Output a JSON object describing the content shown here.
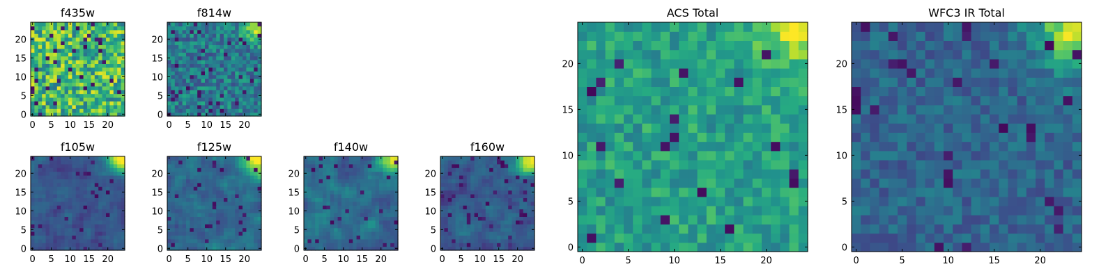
{
  "chart_data": [
    {
      "type": "heatmap",
      "title": "f435w",
      "x_ticks": [
        0,
        5,
        10,
        15,
        20
      ],
      "y_ticks": [
        0,
        5,
        10,
        15,
        20
      ],
      "xlim": [
        -0.5,
        24.5
      ],
      "ylim": [
        -0.5,
        24.5
      ],
      "grid_size": 25,
      "colormap": "viridis",
      "texture": "speckled",
      "seed": 11,
      "noise": 0.18,
      "base": 0.68,
      "corner_boost": 0.0,
      "low_spots": 0.06
    },
    {
      "type": "heatmap",
      "title": "f814w",
      "x_ticks": [
        0,
        5,
        10,
        15,
        20
      ],
      "y_ticks": [
        0,
        5,
        10,
        15,
        20
      ],
      "xlim": [
        -0.5,
        24.5
      ],
      "ylim": [
        -0.5,
        24.5
      ],
      "grid_size": 25,
      "colormap": "viridis",
      "texture": "speckled",
      "seed": 23,
      "noise": 0.12,
      "base": 0.42,
      "corner_boost": 0.55,
      "low_spots": 0.05
    },
    {
      "type": "heatmap",
      "title": "f105w",
      "x_ticks": [
        0,
        5,
        10,
        15,
        20
      ],
      "y_ticks": [
        0,
        5,
        10,
        15,
        20
      ],
      "xlim": [
        -0.5,
        24.5
      ],
      "ylim": [
        -0.5,
        24.5
      ],
      "grid_size": 25,
      "colormap": "viridis",
      "texture": "smooth",
      "seed": 37,
      "noise": 0.1,
      "base": 0.27,
      "corner_boost": 0.75,
      "low_spots": 0.04
    },
    {
      "type": "heatmap",
      "title": "f125w",
      "x_ticks": [
        0,
        5,
        10,
        15,
        20
      ],
      "y_ticks": [
        0,
        5,
        10,
        15,
        20
      ],
      "xlim": [
        -0.5,
        24.5
      ],
      "ylim": [
        -0.5,
        24.5
      ],
      "grid_size": 25,
      "colormap": "viridis",
      "texture": "smooth",
      "seed": 41,
      "noise": 0.12,
      "base": 0.35,
      "corner_boost": 0.7,
      "low_spots": 0.05
    },
    {
      "type": "heatmap",
      "title": "f140w",
      "x_ticks": [
        0,
        5,
        10,
        15,
        20
      ],
      "y_ticks": [
        0,
        5,
        10,
        15,
        20
      ],
      "xlim": [
        -0.5,
        24.5
      ],
      "ylim": [
        -0.5,
        24.5
      ],
      "grid_size": 25,
      "colormap": "viridis",
      "texture": "smooth",
      "seed": 53,
      "noise": 0.12,
      "base": 0.36,
      "corner_boost": 0.7,
      "low_spots": 0.05
    },
    {
      "type": "heatmap",
      "title": "f160w",
      "x_ticks": [
        0,
        5,
        10,
        15,
        20
      ],
      "y_ticks": [
        0,
        5,
        10,
        15,
        20
      ],
      "xlim": [
        -0.5,
        24.5
      ],
      "ylim": [
        -0.5,
        24.5
      ],
      "grid_size": 25,
      "colormap": "viridis",
      "texture": "smooth",
      "seed": 67,
      "noise": 0.12,
      "base": 0.3,
      "corner_boost": 0.75,
      "low_spots": 0.05
    },
    {
      "type": "heatmap",
      "title": "ACS Total",
      "x_ticks": [
        0,
        5,
        10,
        15,
        20
      ],
      "y_ticks": [
        0,
        5,
        10,
        15,
        20
      ],
      "xlim": [
        -0.5,
        24.5
      ],
      "ylim": [
        -0.5,
        24.5
      ],
      "grid_size": 25,
      "colormap": "viridis",
      "texture": "speckled",
      "seed": 79,
      "noise": 0.09,
      "base": 0.57,
      "corner_boost": 0.4,
      "low_spots": 0.04
    },
    {
      "type": "heatmap",
      "title": "WFC3 IR Total",
      "x_ticks": [
        0,
        5,
        10,
        15,
        20
      ],
      "y_ticks": [
        0,
        5,
        10,
        15,
        20
      ],
      "xlim": [
        -0.5,
        24.5
      ],
      "ylim": [
        -0.5,
        24.5
      ],
      "grid_size": 25,
      "colormap": "viridis",
      "texture": "speckled",
      "seed": 97,
      "noise": 0.07,
      "base": 0.33,
      "corner_boost": 0.62,
      "low_spots": 0.05
    }
  ]
}
